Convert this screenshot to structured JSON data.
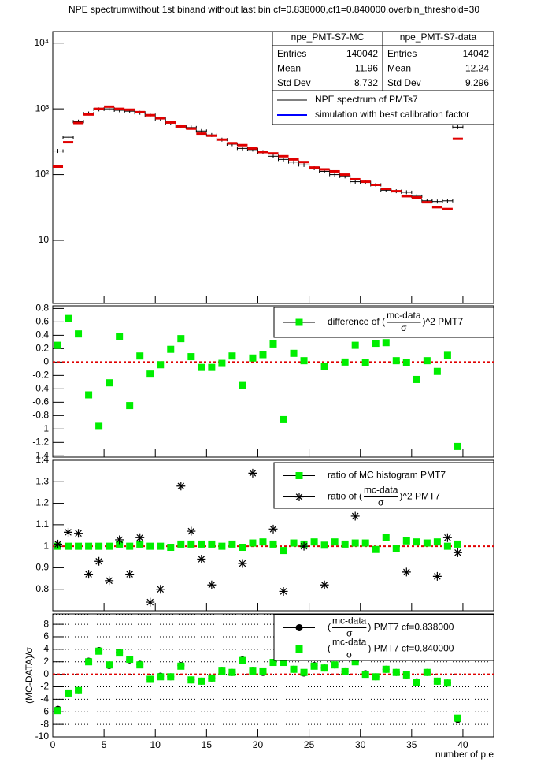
{
  "chart_data": [
    {
      "type": "hist",
      "title": "NPE spectrumwithout 1st binand without last bin cf=0.838000,cf1=0.840000,overbin_threshold=30",
      "log": true,
      "xlim": [
        0,
        43
      ],
      "xticks": [
        0,
        5,
        10,
        15,
        20,
        25,
        30,
        35,
        40
      ],
      "xtick_labels": false,
      "ylim": [
        1.1,
        15000
      ],
      "yticks": [
        10,
        {
          "value": 100,
          "label": "10²"
        },
        {
          "value": 1000,
          "label": "10³"
        },
        {
          "value": 10000,
          "label": "10⁴"
        }
      ],
      "x": [
        0.5,
        1.5,
        2.5,
        3.5,
        4.5,
        5.5,
        6.5,
        7.5,
        8.5,
        9.5,
        10.5,
        11.5,
        12.5,
        13.5,
        14.5,
        15.5,
        16.5,
        17.5,
        18.5,
        19.5,
        20.5,
        21.5,
        22.5,
        23.5,
        24.5,
        25.5,
        26.5,
        27.5,
        28.5,
        29.5,
        30.5,
        31.5,
        32.5,
        33.5,
        34.5,
        35.5,
        36.5,
        37.5,
        38.5,
        39.5
      ],
      "series": [
        {
          "name": "NPE spectrum of PMTs7",
          "color": "#000000",
          "marker": "errorbar",
          "values": [
            229,
            370,
            640,
            850,
            980,
            1000,
            950,
            920,
            870,
            800,
            700,
            610,
            540,
            520,
            460,
            400,
            340,
            290,
            250,
            240,
            220,
            190,
            170,
            155,
            140,
            125,
            112,
            100,
            94,
            78,
            76,
            70,
            58,
            56,
            54,
            47,
            40,
            39,
            40,
            527
          ]
        },
        {
          "name": "simulation with best calibration factor",
          "color": "#e00000",
          "legend_color": "#0000ff",
          "marker": "step",
          "values": [
            132,
            310,
            610,
            820,
            1000,
            1080,
            1000,
            970,
            890,
            800,
            720,
            620,
            540,
            500,
            420,
            390,
            340,
            300,
            280,
            250,
            220,
            210,
            190,
            170,
            155,
            128,
            120,
            112,
            100,
            85,
            78,
            70,
            61,
            56,
            47,
            45,
            38,
            32,
            30,
            350
          ]
        }
      ],
      "stats": [
        {
          "title": "npe_PMT-S7-MC",
          "color": "#0000ff",
          "rows": [
            {
              "label": "Entries",
              "value": 140042
            },
            {
              "label": "Mean",
              "value": 11.96
            },
            {
              "label": "Std Dev",
              "value": 8.732
            }
          ]
        },
        {
          "title": "npe_PMT-S7-data",
          "color": "#000000",
          "rows": [
            {
              "label": "Entries",
              "value": 14042
            },
            {
              "label": "Mean",
              "value": 12.24
            },
            {
              "label": "Std Dev",
              "value": 9.296
            }
          ]
        }
      ]
    },
    {
      "type": "scatter",
      "xlim": [
        0,
        43
      ],
      "xticks": [
        0,
        5,
        10,
        15,
        20,
        25,
        30,
        35,
        40
      ],
      "xtick_labels": false,
      "ylim": [
        -1.42,
        0.84
      ],
      "yticks": [
        -1.4,
        -1.2,
        -1,
        -0.8,
        -0.6,
        -0.4,
        -0.2,
        0,
        0.2,
        0.4,
        0.6,
        0.8
      ],
      "reference_line": 0,
      "x": [
        0.5,
        1.5,
        2.5,
        3.5,
        4.5,
        5.5,
        6.5,
        7.5,
        8.5,
        9.5,
        10.5,
        11.5,
        12.5,
        13.5,
        14.5,
        15.5,
        16.5,
        17.5,
        18.5,
        19.5,
        20.5,
        21.5,
        22.5,
        23.5,
        24.5,
        25.5,
        26.5,
        27.5,
        28.5,
        29.5,
        30.5,
        31.5,
        32.5,
        33.5,
        34.5,
        35.5,
        36.5,
        37.5,
        38.5,
        39.5
      ],
      "series": [
        {
          "name": {
            "prefix": "difference of (",
            "numerator": "mc-data",
            "denominator": "σ",
            "suffix": ")^2 PMT7"
          },
          "color": "#00ee00",
          "marker": "square",
          "values": [
            0.25,
            0.65,
            0.42,
            -0.49,
            -0.96,
            -0.31,
            0.38,
            -0.65,
            0.09,
            -0.18,
            -0.04,
            0.19,
            0.35,
            0.08,
            -0.08,
            -0.08,
            -0.02,
            0.09,
            -0.35,
            0.06,
            0.11,
            0.27,
            -0.86,
            0.13,
            0.02,
            null,
            -0.07,
            null,
            0.0,
            0.25,
            -0.01,
            0.28,
            0.29,
            0.02,
            -0.01,
            -0.26,
            0.02,
            -0.14,
            0.1,
            -1.26
          ]
        }
      ]
    },
    {
      "type": "scatter",
      "xlim": [
        0,
        43
      ],
      "xticks": [
        0,
        5,
        10,
        15,
        20,
        25,
        30,
        35,
        40
      ],
      "xtick_labels": false,
      "ylim": [
        0.7,
        1.4
      ],
      "yticks": [
        0.8,
        0.9,
        1,
        1.1,
        1.2,
        1.3,
        1.4
      ],
      "reference_line": 1,
      "x": [
        0.5,
        1.5,
        2.5,
        3.5,
        4.5,
        5.5,
        6.5,
        7.5,
        8.5,
        9.5,
        10.5,
        11.5,
        12.5,
        13.5,
        14.5,
        15.5,
        16.5,
        17.5,
        18.5,
        19.5,
        20.5,
        21.5,
        22.5,
        23.5,
        24.5,
        25.5,
        26.5,
        27.5,
        28.5,
        29.5,
        30.5,
        31.5,
        32.5,
        33.5,
        34.5,
        35.5,
        36.5,
        37.5,
        38.5,
        39.5
      ],
      "series": [
        {
          "name": "ratio of MC histogram  PMT7",
          "color": "#00ee00",
          "marker": "square",
          "values": [
            1,
            1,
            1,
            1,
            1,
            1,
            1.01,
            1,
            1.01,
            1,
            1,
            0.995,
            1.01,
            1.01,
            1.01,
            1.01,
            1,
            1.01,
            0.995,
            1.015,
            1.02,
            1.01,
            0.98,
            1.015,
            1.01,
            1.02,
            1.005,
            1.02,
            1.01,
            1.015,
            1.015,
            0.985,
            1.04,
            0.99,
            1.025,
            1.02,
            1.015,
            1.02,
            1.0,
            1.01
          ]
        },
        {
          "name": {
            "prefix": "ratio of (",
            "numerator": "mc-data",
            "denominator": "σ",
            "suffix": ")^2 PMT7"
          },
          "color": "#000000",
          "marker": "star",
          "values": [
            1.01,
            1.065,
            1.06,
            0.87,
            0.93,
            0.84,
            1.03,
            0.87,
            1.04,
            0.74,
            0.8,
            null,
            1.28,
            1.07,
            0.94,
            0.82,
            null,
            null,
            0.92,
            1.34,
            null,
            1.08,
            0.79,
            null,
            1.0,
            null,
            0.82,
            null,
            null,
            1.14,
            null,
            null,
            null,
            null,
            0.88,
            null,
            null,
            0.86,
            1.04,
            0.97
          ]
        }
      ]
    },
    {
      "type": "scatter",
      "xlim": [
        0,
        43
      ],
      "xticks": [
        0,
        5,
        10,
        15,
        20,
        25,
        30,
        35,
        40
      ],
      "xtick_labels": true,
      "x_label": "number of p.e",
      "y_label": "(MC-DATA)/σ",
      "grid": true,
      "ylim": [
        -10,
        9.65
      ],
      "yticks": [
        -10,
        -8,
        -6,
        -4,
        -2,
        0,
        2,
        4,
        6,
        8
      ],
      "reference_line": 0,
      "x": [
        0.5,
        1.5,
        2.5,
        3.5,
        4.5,
        5.5,
        6.5,
        7.5,
        8.5,
        9.5,
        10.5,
        11.5,
        12.5,
        13.5,
        14.5,
        15.5,
        16.5,
        17.5,
        18.5,
        19.5,
        20.5,
        21.5,
        22.5,
        23.5,
        24.5,
        25.5,
        26.5,
        27.5,
        28.5,
        29.5,
        30.5,
        31.5,
        32.5,
        33.5,
        34.5,
        35.5,
        36.5,
        37.5,
        38.5,
        39.5
      ],
      "series": [
        {
          "name": {
            "prefix": "(",
            "numerator": "mc-data",
            "denominator": "σ",
            "suffix": ") PMT7 cf=0.838000"
          },
          "color": "#000000",
          "marker": "circle",
          "values": [
            -5.6,
            -3.0,
            -2.6,
            2.1,
            3.8,
            1.4,
            3.5,
            2.3,
            1.6,
            -0.8,
            -0.3,
            -0.4,
            1.4,
            -0.9,
            -1.1,
            -0.6,
            0.5,
            0.3,
            2.3,
            0.5,
            0.3,
            1.9,
            2.0,
            0.8,
            0.2,
            1.4,
            1.0,
            1.5,
            0.4,
            2.1,
            0.1,
            -0.4,
            0.8,
            0.3,
            -0.1,
            -1.2,
            0.3,
            -1.1,
            -1.4,
            -7.2
          ]
        },
        {
          "name": {
            "prefix": "(",
            "numerator": "mc-data",
            "denominator": "σ",
            "suffix": ") PMT7 cf=0.840000"
          },
          "color": "#00ee00",
          "marker": "square",
          "values": [
            -5.8,
            -3.0,
            -2.6,
            2.0,
            3.7,
            1.5,
            3.4,
            2.4,
            1.5,
            -0.8,
            -0.4,
            -0.4,
            1.3,
            -0.9,
            -1.1,
            -0.6,
            0.5,
            0.3,
            2.2,
            0.5,
            0.4,
            1.9,
            1.9,
            0.8,
            0.3,
            1.3,
            1.0,
            1.5,
            0.4,
            2.0,
            0.0,
            -0.4,
            0.8,
            0.3,
            -0.1,
            -1.3,
            0.3,
            -1.1,
            -1.4,
            -7.0
          ]
        }
      ]
    }
  ]
}
